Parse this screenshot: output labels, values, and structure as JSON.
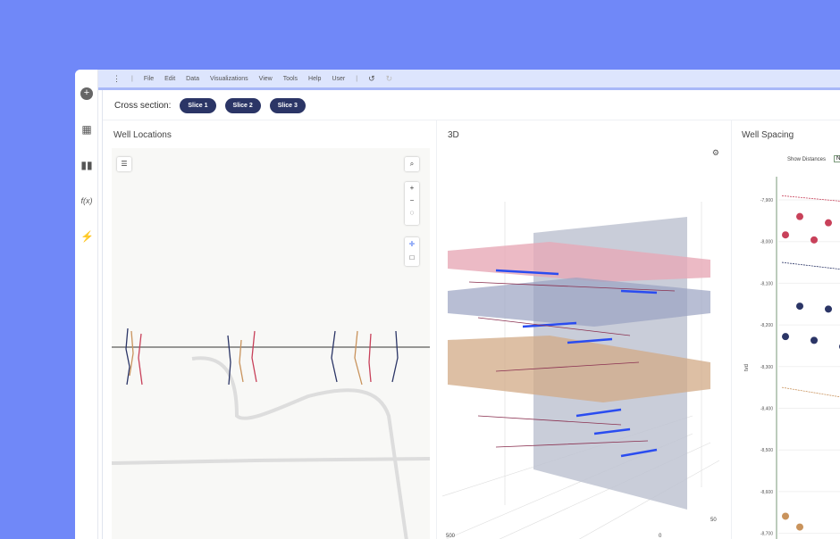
{
  "menu": {
    "items": [
      "File",
      "Edit",
      "Data",
      "Visualizations",
      "View",
      "Tools",
      "Help",
      "User"
    ]
  },
  "sidebar": {
    "icons": [
      "add-icon",
      "table-icon",
      "bar-chart-icon",
      "function-icon",
      "lightning-icon"
    ]
  },
  "cross_section": {
    "label": "Cross section:",
    "slices": [
      "Slice 1",
      "Slice 2",
      "Slice 3"
    ]
  },
  "panels": {
    "well_locations": "Well Locations",
    "three_d": "3D",
    "well_spacing": "Well Spacing"
  },
  "three_d_axis": {
    "labels": [
      "500",
      "0",
      "50"
    ]
  },
  "well_spacing": {
    "show_distances_label": "Show Distances",
    "toggle_value": "N"
  },
  "colors": {
    "background": "#7088f8",
    "menubar": "#dde5fd",
    "pill": "#2b3566",
    "red": "#c8415a",
    "navy": "#2b3566",
    "tan": "#c9935c"
  },
  "chart_data": {
    "type": "scatter",
    "ylabel": "tvd",
    "yticks": [
      "-7,900",
      "-8,000",
      "-8,100",
      "-8,200",
      "-8,300",
      "-8,400",
      "-8,500",
      "-8,600",
      "-8,700"
    ],
    "ylim": [
      -8720,
      -7850
    ],
    "series": [
      {
        "color": "red",
        "tvd": [
          -7984,
          -7940,
          -7996,
          -7955
        ]
      },
      {
        "color": "navy",
        "tvd": [
          -8228,
          -8155,
          -8237,
          -8162,
          -8252
        ]
      },
      {
        "color": "tan",
        "tvd": [
          -8659,
          -8685
        ]
      }
    ],
    "trend_lines": [
      {
        "color": "red",
        "tvd": [
          -7890,
          -7910
        ]
      },
      {
        "color": "navy",
        "tvd": [
          -8050,
          -8075
        ]
      },
      {
        "color": "tan",
        "tvd": [
          -8350,
          -8385
        ]
      }
    ]
  }
}
